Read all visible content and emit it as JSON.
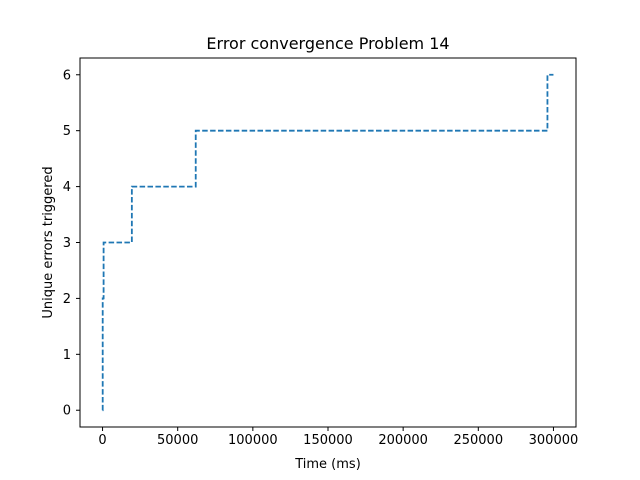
{
  "chart_data": {
    "type": "line",
    "title": "Error convergence Problem 14",
    "xlabel": "Time (ms)",
    "ylabel": "Unique errors triggered",
    "xlim": [
      -15000,
      315000
    ],
    "ylim": [
      -0.3,
      6.3
    ],
    "xticks": [
      0,
      50000,
      100000,
      150000,
      200000,
      250000,
      300000
    ],
    "xtick_labels": [
      "0",
      "50000",
      "100000",
      "150000",
      "200000",
      "250000",
      "300000"
    ],
    "yticks": [
      0,
      1,
      2,
      3,
      4,
      5,
      6
    ],
    "ytick_labels": [
      "0",
      "1",
      "2",
      "3",
      "4",
      "5",
      "6"
    ],
    "grid": false,
    "legend": "none",
    "series": [
      {
        "color": "#1f77b4",
        "linestyle": "dashed",
        "drawstyle": "steps-post",
        "x": [
          0,
          100,
          700,
          19500,
          62000,
          296000,
          300000
        ],
        "y": [
          0,
          2,
          3,
          4,
          5,
          6,
          6
        ]
      }
    ]
  }
}
